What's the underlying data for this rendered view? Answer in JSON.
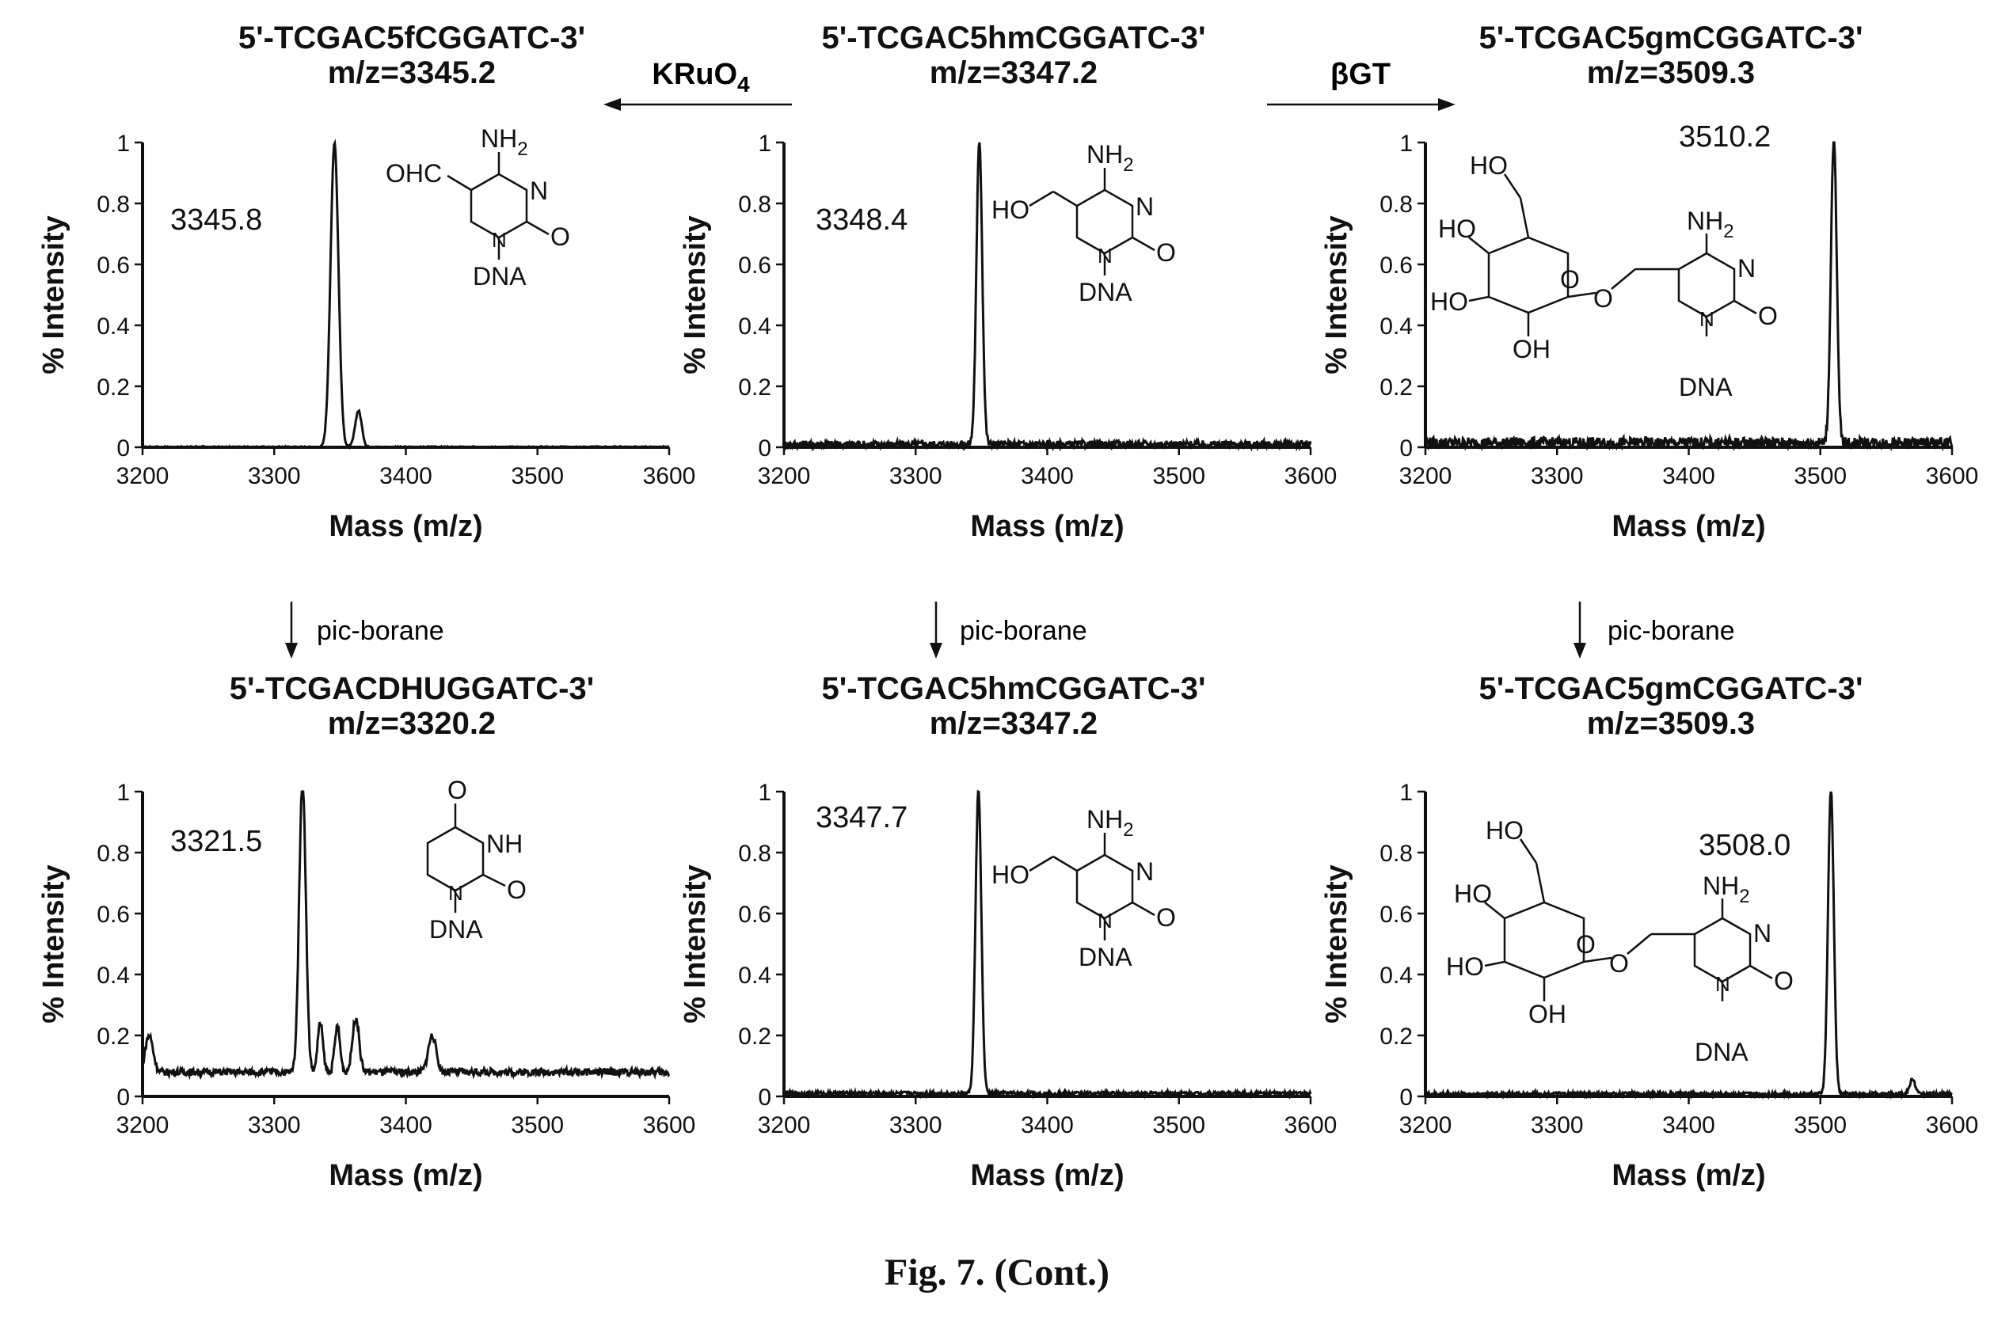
{
  "caption": "Fig. 7. (Cont.)",
  "reactions": {
    "top_left_arrow": {
      "label": "KRuO4"
    },
    "top_right_arrow": {
      "label": "βGT"
    },
    "down_arrows": [
      "pic-borane",
      "pic-borane",
      "pic-borane"
    ]
  },
  "panels": [
    {
      "seq": "5'-TCGAC5fCGGATC-3'",
      "mz": "m/z=3345.2",
      "peak_label": "3345.8"
    },
    {
      "seq": "5'-TCGAC5hmCGGATC-3'",
      "mz": "m/z=3347.2",
      "peak_label": "3348.4"
    },
    {
      "seq": "5'-TCGAC5gmCGGATC-3'",
      "mz": "m/z=3509.3",
      "peak_label": "3510.2"
    },
    {
      "seq": "5'-TCGACDHUGGATC-3'",
      "mz": "m/z=3320.2",
      "peak_label": "3321.5"
    },
    {
      "seq": "5'-TCGAC5hmCGGATC-3'",
      "mz": "m/z=3347.2",
      "peak_label": "3347.7"
    },
    {
      "seq": "5'-TCGAC5gmCGGATC-3'",
      "mz": "m/z=3509.3",
      "peak_label": "3508.0"
    }
  ],
  "structures": {
    "fC": {
      "substituent": "OHC",
      "amine": "NH2",
      "n3": "N",
      "carbonyl": "O",
      "attach": "N",
      "base": "DNA"
    },
    "hmC": {
      "substituent": "HO",
      "amine": "NH2",
      "n3": "N",
      "carbonyl": "O",
      "attach": "N",
      "base": "DNA"
    },
    "gmC": {
      "ho1": "HO",
      "ho2": "HO",
      "ho3": "HO",
      "oh": "OH",
      "ring_o": "O",
      "link_o": "O",
      "amine": "NH2",
      "n3": "N",
      "carbonyl": "O",
      "attach": "N",
      "base": "DNA"
    },
    "DHU": {
      "top_o": "O",
      "nh": "NH",
      "carbonyl": "O",
      "attach": "N",
      "base": "DNA"
    }
  },
  "chart_data": [
    {
      "type": "line",
      "title": "5'-TCGAC5fCGGATC-3' m/z=3345.2",
      "xlabel": "Mass (m/z)",
      "ylabel": "% Intensity",
      "xlim": [
        3200,
        3600
      ],
      "ylim": [
        0,
        1
      ],
      "x_ticks": [
        3200,
        3300,
        3400,
        3500,
        3600
      ],
      "y_ticks": [
        0,
        0.2,
        0.4,
        0.6,
        0.8,
        1
      ],
      "x_tick_labels": [
        "3200",
        "3300",
        "3400",
        "3500",
        "3600"
      ],
      "y_tick_labels": [
        "0",
        "0.2",
        "0.4",
        "0.6",
        "0.8",
        "1"
      ],
      "baseline": 0.0,
      "noise": 0.003,
      "peaks": [
        {
          "x": 3345.8,
          "y": 1.0,
          "width": 3.0
        },
        {
          "x": 3364,
          "y": 0.12,
          "width": 2.5
        }
      ]
    },
    {
      "type": "line",
      "title": "5'-TCGAC5hmCGGATC-3' m/z=3347.2",
      "xlabel": "Mass (m/z)",
      "ylabel": "% Intensity",
      "xlim": [
        3200,
        3600
      ],
      "ylim": [
        0,
        1
      ],
      "x_ticks": [
        3200,
        3300,
        3400,
        3500,
        3600
      ],
      "y_ticks": [
        0,
        0.2,
        0.4,
        0.6,
        0.8,
        1
      ],
      "x_tick_labels": [
        "3200",
        "3300",
        "3400",
        "3500",
        "3600"
      ],
      "y_tick_labels": [
        "0",
        "0.2",
        "0.4",
        "0.6",
        "0.8",
        "1"
      ],
      "baseline": 0.01,
      "noise": 0.012,
      "peaks": [
        {
          "x": 3348.4,
          "y": 1.0,
          "width": 2.2
        }
      ]
    },
    {
      "type": "line",
      "title": "5'-TCGAC5gmCGGATC-3' m/z=3509.3",
      "xlabel": "Mass (m/z)",
      "ylabel": "% Intensity",
      "xlim": [
        3200,
        3600
      ],
      "ylim": [
        0,
        1
      ],
      "x_ticks": [
        3200,
        3300,
        3400,
        3500,
        3600
      ],
      "y_ticks": [
        0,
        0.2,
        0.4,
        0.6,
        0.8,
        1
      ],
      "x_tick_labels": [
        "3200",
        "3300",
        "3400",
        "3500",
        "3600"
      ],
      "y_tick_labels": [
        "0",
        "0.2",
        "0.4",
        "0.6",
        "0.8",
        "1"
      ],
      "baseline": 0.015,
      "noise": 0.018,
      "peaks": [
        {
          "x": 3510.2,
          "y": 1.0,
          "width": 2.2
        }
      ]
    },
    {
      "type": "line",
      "title": "5'-TCGACDHUGGATC-3' m/z=3320.2",
      "xlabel": "Mass (m/z)",
      "ylabel": "% Intensity",
      "xlim": [
        3200,
        3600
      ],
      "ylim": [
        0,
        1
      ],
      "x_ticks": [
        3200,
        3300,
        3400,
        3500,
        3600
      ],
      "y_ticks": [
        0,
        0.2,
        0.4,
        0.6,
        0.8,
        1
      ],
      "x_tick_labels": [
        "3200",
        "3300",
        "3400",
        "3500",
        "3600"
      ],
      "y_tick_labels": [
        "0",
        "0.2",
        "0.4",
        "0.6",
        "0.8",
        "1"
      ],
      "baseline": 0.08,
      "noise": 0.012,
      "peaks": [
        {
          "x": 3321.5,
          "y": 0.97,
          "width": 2.5
        },
        {
          "x": 3335,
          "y": 0.16,
          "width": 2.0
        },
        {
          "x": 3348,
          "y": 0.15,
          "width": 2.0
        },
        {
          "x": 3362,
          "y": 0.18,
          "width": 2.5
        },
        {
          "x": 3205,
          "y": 0.12,
          "width": 3.0
        },
        {
          "x": 3420,
          "y": 0.12,
          "width": 3.0
        }
      ]
    },
    {
      "type": "line",
      "title": "5'-TCGAC5hmCGGATC-3' m/z=3347.2",
      "xlabel": "Mass (m/z)",
      "ylabel": "% Intensity",
      "xlim": [
        3200,
        3600
      ],
      "ylim": [
        0,
        1
      ],
      "x_ticks": [
        3200,
        3300,
        3400,
        3500,
        3600
      ],
      "y_ticks": [
        0,
        0.2,
        0.4,
        0.6,
        0.8,
        1
      ],
      "x_tick_labels": [
        "3200",
        "3300",
        "3400",
        "3500",
        "3600"
      ],
      "y_tick_labels": [
        "0",
        "0.2",
        "0.4",
        "0.6",
        "0.8",
        "1"
      ],
      "baseline": 0.01,
      "noise": 0.006,
      "peaks": [
        {
          "x": 3347.7,
          "y": 1.0,
          "width": 2.2
        }
      ]
    },
    {
      "type": "line",
      "title": "5'-TCGAC5gmCGGATC-3' m/z=3509.3",
      "xlabel": "Mass (m/z)",
      "ylabel": "% Intensity",
      "xlim": [
        3200,
        3600
      ],
      "ylim": [
        0,
        1
      ],
      "x_ticks": [
        3200,
        3300,
        3400,
        3500,
        3600
      ],
      "y_ticks": [
        0,
        0.2,
        0.4,
        0.6,
        0.8,
        1
      ],
      "x_tick_labels": [
        "3200",
        "3300",
        "3400",
        "3500",
        "3600"
      ],
      "y_tick_labels": [
        "0",
        "0.2",
        "0.4",
        "0.6",
        "0.8",
        "1"
      ],
      "baseline": 0.008,
      "noise": 0.006,
      "peaks": [
        {
          "x": 3508.0,
          "y": 1.0,
          "width": 2.2
        },
        {
          "x": 3570,
          "y": 0.05,
          "width": 2.0
        }
      ]
    }
  ]
}
